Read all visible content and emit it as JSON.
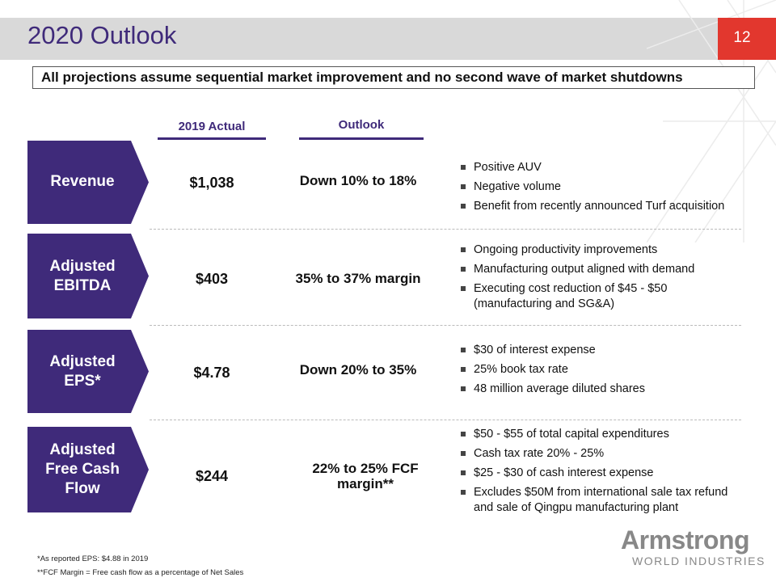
{
  "header": {
    "title": "2020 Outlook",
    "page_number": "12"
  },
  "banner": "All projections assume sequential market improvement and no second wave of market shutdowns",
  "columns": {
    "actual": "2019 Actual",
    "outlook": "Outlook"
  },
  "rows": [
    {
      "label": [
        "Revenue"
      ],
      "actual": "$1,038",
      "outlook": [
        "Down 10% to 18%"
      ],
      "bullets": [
        "Positive AUV",
        "Negative volume",
        "Benefit from recently announced Turf acquisition"
      ]
    },
    {
      "label": [
        "Adjusted",
        "EBITDA"
      ],
      "actual": "$403",
      "outlook": [
        "35% to 37% margin"
      ],
      "bullets": [
        "Ongoing productivity improvements",
        "Manufacturing output aligned with demand",
        "Executing cost reduction of $45 - $50 (manufacturing and SG&A)"
      ]
    },
    {
      "label": [
        "Adjusted",
        "EPS*"
      ],
      "actual": "$4.78",
      "outlook": [
        "Down 20% to 35%"
      ],
      "bullets": [
        "$30 of interest expense",
        "25% book tax rate",
        "48 million average diluted shares"
      ]
    },
    {
      "label": [
        "Adjusted",
        "Free Cash",
        "Flow"
      ],
      "actual": "$244",
      "outlook": [
        "22% to 25% FCF",
        "margin**"
      ],
      "bullets": [
        "$50 - $55 of total capital expenditures",
        "Cash tax rate 20% - 25%",
        "$25 - $30 of cash interest expense",
        "Excludes $50M from international sale tax refund and sale of Qingpu manufacturing plant"
      ]
    }
  ],
  "footnotes": [
    "*As reported EPS:  $4.88 in 2019",
    "**FCF  Margin = Free cash flow as a percentage of Net Sales"
  ],
  "logo": {
    "name": "Armstrong",
    "tagline": "WORLD INDUSTRIES"
  },
  "colors": {
    "accent_purple": "#3f2a7a",
    "red": "#e2372e",
    "header_gray": "#d9d9d9"
  }
}
